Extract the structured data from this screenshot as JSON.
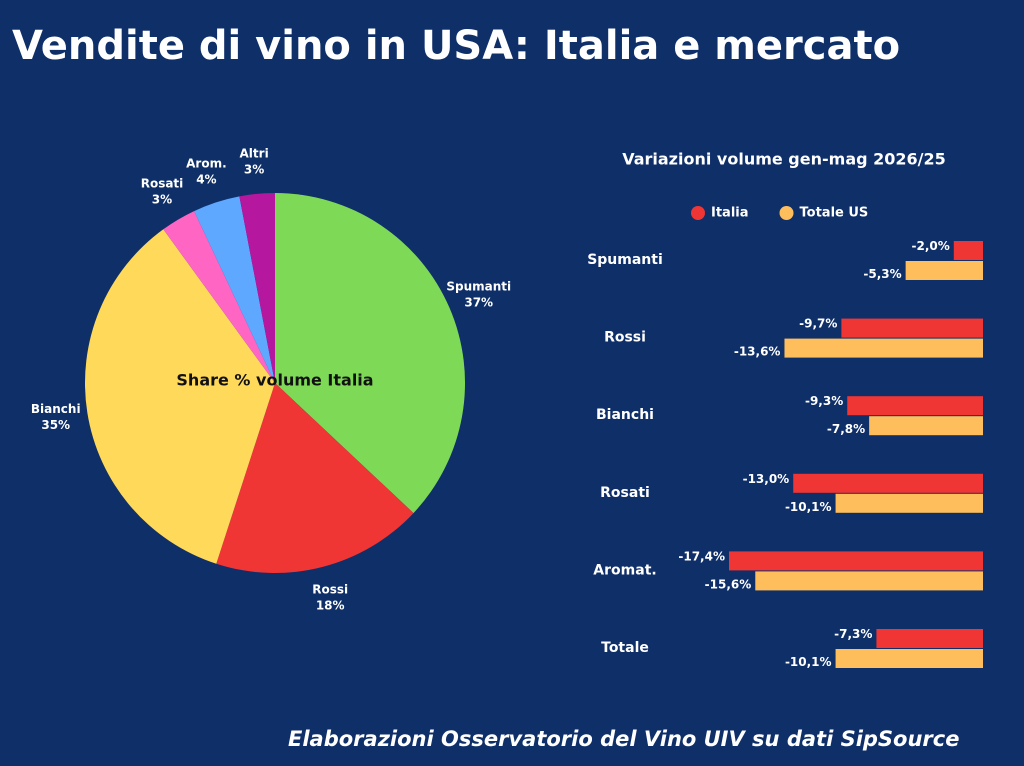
{
  "title": "Vendite di vino in USA: Italia e mercato",
  "source": "Elaborazioni Osservatorio del Vino UIV su dati SipSource",
  "chart_data": [
    {
      "type": "pie",
      "title": "Share % volume Italia",
      "categories": [
        "Spumanti",
        "Rossi",
        "Bianchi",
        "Rosati",
        "Arom.",
        "Altri"
      ],
      "values": [
        37,
        18,
        35,
        3,
        4,
        3
      ],
      "value_labels": [
        "37%",
        "18%",
        "35%",
        "3%",
        "4%",
        "3%"
      ],
      "colors": [
        "#7ed957",
        "#f03535",
        "#ffd95a",
        "#ff66c4",
        "#5ea8ff",
        "#b5179e"
      ]
    },
    {
      "type": "hbar",
      "title": "Variazioni volume gen-mag 2026/25",
      "categories": [
        "Spumanti",
        "Rossi",
        "Bianchi",
        "Rosati",
        "Aromat.",
        "Totale"
      ],
      "series": [
        {
          "name": "Italia",
          "color": "#f03535",
          "values": [
            -2.0,
            -9.7,
            -9.3,
            -13.0,
            -17.4,
            -7.3
          ],
          "value_labels": [
            "-2,0%",
            "-9,7%",
            "-9,3%",
            "-13,0%",
            "-17,4%",
            "-7,3%"
          ]
        },
        {
          "name": "Totale US",
          "color": "#ffbe5c",
          "values": [
            -5.3,
            -13.6,
            -7.8,
            -10.1,
            -15.6,
            -10.1
          ],
          "value_labels": [
            "-5,3%",
            "-13,6%",
            "-7,8%",
            "-10,1%",
            "-15,6%",
            "-10,1%"
          ]
        }
      ],
      "legend": "top"
    }
  ]
}
